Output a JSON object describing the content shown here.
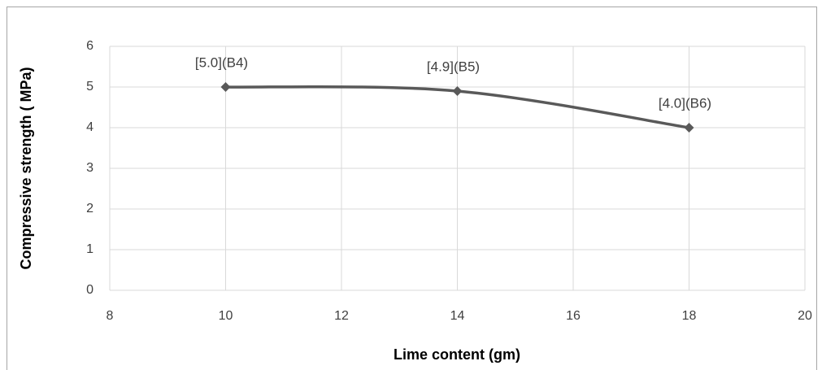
{
  "chart_data": {
    "type": "line",
    "x_label": "Lime content (gm)",
    "y_label": "Compressive strength ( MPa)",
    "x": [
      10,
      14,
      18
    ],
    "values": [
      5.0,
      4.9,
      4.0
    ],
    "value_labels": [
      "[5.0](B4)",
      "[4.9](B5)",
      "[4.0](B6)"
    ],
    "color": "#595959",
    "smooth": true,
    "xlim": [
      8,
      20
    ],
    "xticks": [
      8,
      10,
      12,
      14,
      16,
      18,
      20
    ],
    "ylim": [
      0,
      6
    ],
    "yticks": [
      0,
      1,
      2,
      3,
      4,
      5,
      6
    ],
    "grid": true
  }
}
